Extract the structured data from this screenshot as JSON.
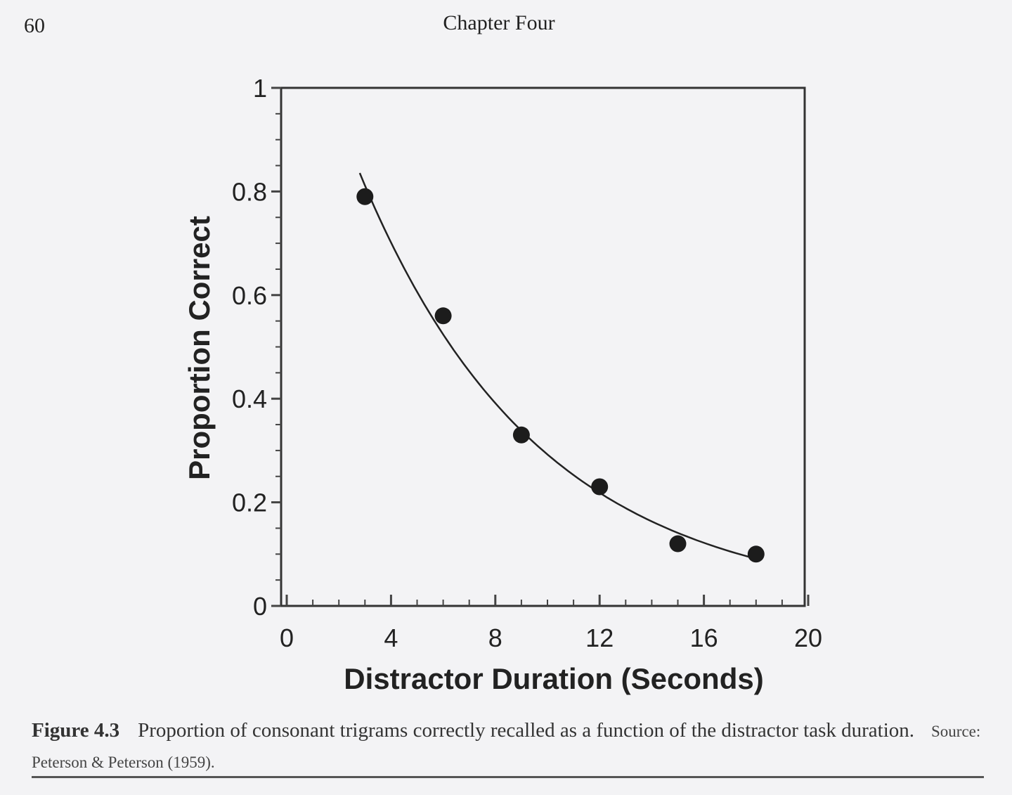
{
  "page": {
    "number": "60",
    "running_head": "Chapter Four"
  },
  "caption": {
    "label": "Figure 4.3",
    "text": "Proportion of consonant trigrams correctly recalled as a function of the distractor task duration.",
    "source": "Source:  Peterson & Peterson (1959)."
  },
  "chart_data": {
    "type": "scatter",
    "xlabel": "Distractor Duration (Seconds)",
    "ylabel": "Proportion Correct",
    "xlim": [
      0,
      20
    ],
    "ylim": [
      0,
      1
    ],
    "xticks": [
      0,
      4,
      8,
      12,
      16,
      20
    ],
    "xtick_labels": [
      "0",
      "4",
      "8",
      "12",
      "16",
      "20"
    ],
    "yticks": [
      0,
      0.2,
      0.4,
      0.6,
      0.8,
      1
    ],
    "ytick_labels": [
      "0",
      "0.2",
      "0.4",
      "0.6",
      "0.8",
      "1"
    ],
    "grid": false,
    "points": {
      "x": [
        3,
        6,
        9,
        12,
        15,
        18
      ],
      "y": [
        0.79,
        0.56,
        0.33,
        0.23,
        0.12,
        0.1
      ]
    },
    "fit_curve": {
      "type": "exponential decay",
      "x_range": [
        2.8,
        18
      ]
    },
    "colors": {
      "ink": "#222222",
      "paper": "#f3f3f5"
    }
  }
}
